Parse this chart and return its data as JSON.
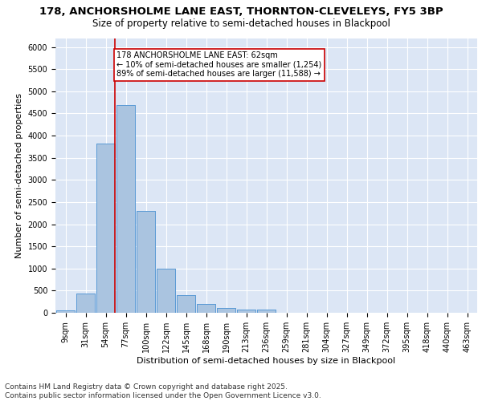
{
  "title": "178, ANCHORSHOLME LANE EAST, THORNTON-CLEVELEYS, FY5 3BP",
  "subtitle": "Size of property relative to semi-detached houses in Blackpool",
  "xlabel": "Distribution of semi-detached houses by size in Blackpool",
  "ylabel": "Number of semi-detached properties",
  "categories": [
    "9sqm",
    "31sqm",
    "54sqm",
    "77sqm",
    "100sqm",
    "122sqm",
    "145sqm",
    "168sqm",
    "190sqm",
    "213sqm",
    "236sqm",
    "259sqm",
    "281sqm",
    "304sqm",
    "327sqm",
    "349sqm",
    "372sqm",
    "395sqm",
    "418sqm",
    "440sqm",
    "463sqm"
  ],
  "values": [
    50,
    430,
    3820,
    4680,
    2300,
    1000,
    400,
    200,
    100,
    70,
    70,
    0,
    0,
    0,
    0,
    0,
    0,
    0,
    0,
    0,
    0
  ],
  "bar_color": "#aac4e0",
  "bar_edge_color": "#5b9bd5",
  "background_color": "#dce6f5",
  "grid_color": "#ffffff",
  "red_line_x": 2.45,
  "annotation_text": "178 ANCHORSHOLME LANE EAST: 62sqm\n← 10% of semi-detached houses are smaller (1,254)\n89% of semi-detached houses are larger (11,588) →",
  "annotation_box_color": "#ffffff",
  "annotation_box_edge": "#cc0000",
  "vline_color": "#cc0000",
  "footer_text": "Contains HM Land Registry data © Crown copyright and database right 2025.\nContains public sector information licensed under the Open Government Licence v3.0.",
  "ylim": [
    0,
    6200
  ],
  "yticks": [
    0,
    500,
    1000,
    1500,
    2000,
    2500,
    3000,
    3500,
    4000,
    4500,
    5000,
    5500,
    6000
  ],
  "title_fontsize": 9.5,
  "subtitle_fontsize": 8.5,
  "axis_fontsize": 8,
  "tick_fontsize": 7,
  "footer_fontsize": 6.5,
  "annotation_fontsize": 7
}
